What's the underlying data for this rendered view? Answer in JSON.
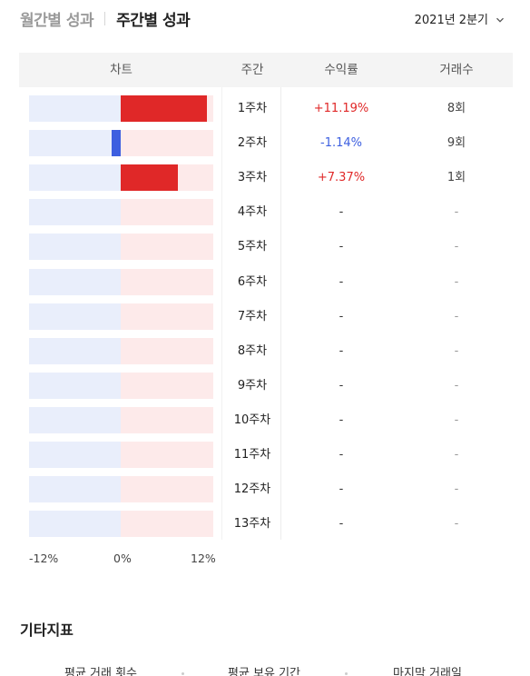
{
  "tabs": {
    "monthly": "월간별 성과",
    "weekly": "주간별 성과"
  },
  "period": {
    "label": "2021년 2분기"
  },
  "table": {
    "headers": {
      "chart": "차트",
      "week": "주간",
      "return": "수익률",
      "trades": "거래수"
    },
    "rows": [
      {
        "week": "1주차",
        "return": "+11.19%",
        "trades": "8회",
        "value": 11.19
      },
      {
        "week": "2주차",
        "return": "-1.14%",
        "trades": "9회",
        "value": -1.14
      },
      {
        "week": "3주차",
        "return": "+7.37%",
        "trades": "1회",
        "value": 7.37
      },
      {
        "week": "4주차",
        "return": "-",
        "trades": "-",
        "value": null
      },
      {
        "week": "5주차",
        "return": "-",
        "trades": "-",
        "value": null
      },
      {
        "week": "6주차",
        "return": "-",
        "trades": "-",
        "value": null
      },
      {
        "week": "7주차",
        "return": "-",
        "trades": "-",
        "value": null
      },
      {
        "week": "8주차",
        "return": "-",
        "trades": "-",
        "value": null
      },
      {
        "week": "9주차",
        "return": "-",
        "trades": "-",
        "value": null
      },
      {
        "week": "10주차",
        "return": "-",
        "trades": "-",
        "value": null
      },
      {
        "week": "11주차",
        "return": "-",
        "trades": "-",
        "value": null
      },
      {
        "week": "12주차",
        "return": "-",
        "trades": "-",
        "value": null
      },
      {
        "week": "13주차",
        "return": "-",
        "trades": "-",
        "value": null
      }
    ]
  },
  "axis": {
    "min_label": "-12%",
    "zero_label": "0%",
    "max_label": "12%",
    "range": [
      -12,
      12
    ]
  },
  "other_metrics": {
    "title": "기타지표",
    "labels": [
      "평균 거래 횟수",
      "평균 보유 기간",
      "마지막 거래일"
    ]
  },
  "colors": {
    "positive": "#e02828",
    "negative": "#3d5fe0",
    "pos_bg": "#fdeaea",
    "neg_bg": "#e9eefb"
  },
  "icons": {
    "period_dropdown": "chevron-down-icon"
  }
}
